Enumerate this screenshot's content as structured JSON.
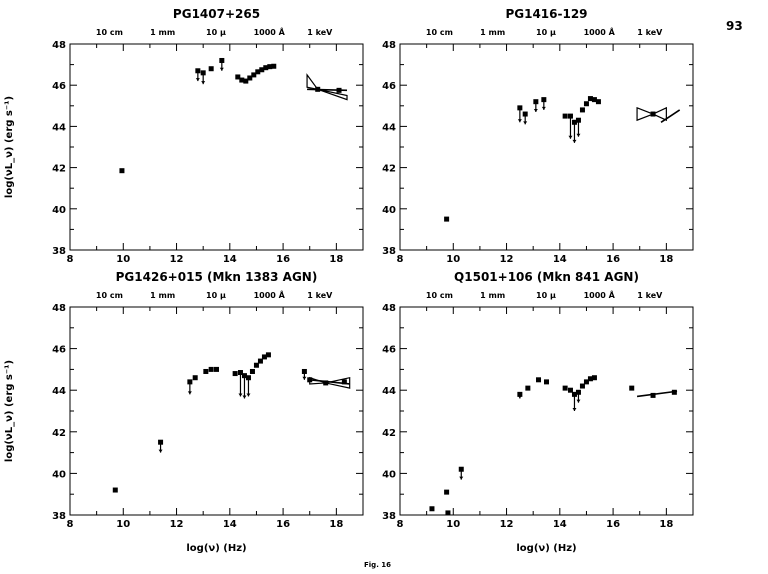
{
  "page_number": "93",
  "figure_caption": "Fig. 16",
  "top_axis_labels": [
    "10 cm",
    "1 mm",
    "10 μ",
    "1000 Å",
    "1 keV"
  ],
  "top_axis_positions": [
    9.48,
    11.48,
    13.48,
    15.48,
    17.38
  ],
  "ylabel": "log(νL_ν) (erg s⁻¹)",
  "xlabel": "log(ν) (Hz)",
  "chart_data": [
    {
      "type": "scatter",
      "title": "PG1407+265",
      "xlim": [
        8,
        19
      ],
      "ylim": [
        38,
        48
      ],
      "xticks": [
        8,
        10,
        12,
        14,
        16,
        18
      ],
      "yticks": [
        38,
        40,
        42,
        44,
        46,
        48
      ],
      "points": [
        {
          "x": 9.95,
          "y": 41.85
        },
        {
          "x": 12.8,
          "y": 46.7
        },
        {
          "x": 13.0,
          "y": 46.6
        },
        {
          "x": 13.3,
          "y": 46.8
        },
        {
          "x": 13.7,
          "y": 47.2
        },
        {
          "x": 14.3,
          "y": 46.4
        },
        {
          "x": 14.45,
          "y": 46.25
        },
        {
          "x": 14.6,
          "y": 46.2
        },
        {
          "x": 14.75,
          "y": 46.35
        },
        {
          "x": 14.9,
          "y": 46.5
        },
        {
          "x": 15.05,
          "y": 46.65
        },
        {
          "x": 15.2,
          "y": 46.75
        },
        {
          "x": 15.35,
          "y": 46.85
        },
        {
          "x": 15.5,
          "y": 46.9
        },
        {
          "x": 15.65,
          "y": 46.92
        },
        {
          "x": 17.3,
          "y": 45.8
        },
        {
          "x": 18.1,
          "y": 45.75
        }
      ],
      "upper_limits": [
        {
          "x": 12.8,
          "y": 46.7,
          "ylow": 46.2
        },
        {
          "x": 13.0,
          "y": 46.6,
          "ylow": 46.05
        },
        {
          "x": 13.7,
          "y": 47.2,
          "ylow": 46.7
        }
      ],
      "xray_bowtie": {
        "x1": 16.9,
        "x2": 18.4,
        "pivot_x": 17.3,
        "pivot_y": 45.8,
        "y_hi_start": 46.5,
        "y_lo_start": 45.9,
        "y_hi_end": 45.5,
        "y_lo_end": 45.3
      },
      "xray_line": {
        "x1": 16.9,
        "y1": 45.8,
        "x2": 18.4,
        "y2": 45.75
      }
    },
    {
      "type": "scatter",
      "title": "PG1416-129",
      "xlim": [
        8,
        19
      ],
      "ylim": [
        38,
        48
      ],
      "xticks": [
        8,
        10,
        12,
        14,
        16,
        18
      ],
      "yticks": [
        38,
        40,
        42,
        44,
        46,
        48
      ],
      "points": [
        {
          "x": 9.75,
          "y": 39.5
        },
        {
          "x": 12.5,
          "y": 44.9
        },
        {
          "x": 12.7,
          "y": 44.6
        },
        {
          "x": 13.1,
          "y": 45.2
        },
        {
          "x": 13.4,
          "y": 45.3
        },
        {
          "x": 14.2,
          "y": 44.5
        },
        {
          "x": 14.4,
          "y": 44.5
        },
        {
          "x": 14.55,
          "y": 44.2
        },
        {
          "x": 14.7,
          "y": 44.3
        },
        {
          "x": 14.85,
          "y": 44.8
        },
        {
          "x": 15.0,
          "y": 45.1
        },
        {
          "x": 15.15,
          "y": 45.35
        },
        {
          "x": 15.3,
          "y": 45.3
        },
        {
          "x": 15.45,
          "y": 45.2
        },
        {
          "x": 17.5,
          "y": 44.6
        }
      ],
      "upper_limits": [
        {
          "x": 12.5,
          "y": 44.9,
          "ylow": 44.2
        },
        {
          "x": 12.7,
          "y": 44.6,
          "ylow": 44.1
        },
        {
          "x": 13.1,
          "y": 45.2,
          "ylow": 44.7
        },
        {
          "x": 13.4,
          "y": 45.3,
          "ylow": 44.8
        },
        {
          "x": 14.4,
          "y": 44.5,
          "ylow": 43.4
        },
        {
          "x": 14.55,
          "y": 44.2,
          "ylow": 43.2
        },
        {
          "x": 14.7,
          "y": 44.3,
          "ylow": 43.5
        }
      ],
      "xray_bowtie": {
        "x1": 16.9,
        "x2": 18.0,
        "pivot_x": 17.5,
        "pivot_y": 44.6,
        "y_hi_start": 44.9,
        "y_lo_start": 44.3,
        "y_hi_end": 44.3,
        "y_lo_end": 44.9
      },
      "xray_line": {
        "x1": 17.8,
        "y1": 44.2,
        "x2": 18.5,
        "y2": 44.8
      }
    },
    {
      "type": "scatter",
      "title": "PG1426+015 (Mkn 1383 AGN)",
      "xlim": [
        8,
        19
      ],
      "ylim": [
        38,
        48
      ],
      "xticks": [
        8,
        10,
        12,
        14,
        16,
        18
      ],
      "yticks": [
        38,
        40,
        42,
        44,
        46,
        48
      ],
      "points": [
        {
          "x": 9.7,
          "y": 39.2
        },
        {
          "x": 11.4,
          "y": 41.5
        },
        {
          "x": 12.5,
          "y": 44.4
        },
        {
          "x": 12.7,
          "y": 44.6
        },
        {
          "x": 13.1,
          "y": 44.9
        },
        {
          "x": 13.3,
          "y": 45.0
        },
        {
          "x": 13.5,
          "y": 45.0
        },
        {
          "x": 14.2,
          "y": 44.8
        },
        {
          "x": 14.4,
          "y": 44.85
        },
        {
          "x": 14.55,
          "y": 44.7
        },
        {
          "x": 14.7,
          "y": 44.6
        },
        {
          "x": 14.85,
          "y": 44.9
        },
        {
          "x": 15.0,
          "y": 45.2
        },
        {
          "x": 15.15,
          "y": 45.4
        },
        {
          "x": 15.3,
          "y": 45.6
        },
        {
          "x": 15.45,
          "y": 45.7
        },
        {
          "x": 16.8,
          "y": 44.9
        },
        {
          "x": 17.0,
          "y": 44.5
        },
        {
          "x": 17.6,
          "y": 44.35
        },
        {
          "x": 18.3,
          "y": 44.4
        }
      ],
      "upper_limits": [
        {
          "x": 11.4,
          "y": 41.5,
          "ylow": 41.0
        },
        {
          "x": 12.5,
          "y": 44.4,
          "ylow": 43.8
        },
        {
          "x": 14.4,
          "y": 44.85,
          "ylow": 43.7
        },
        {
          "x": 14.55,
          "y": 44.7,
          "ylow": 43.6
        },
        {
          "x": 14.7,
          "y": 44.6,
          "ylow": 43.7
        },
        {
          "x": 16.8,
          "y": 44.9,
          "ylow": 44.5
        }
      ],
      "xray_bowtie": {
        "x1": 17.0,
        "x2": 18.5,
        "pivot_x": 17.6,
        "pivot_y": 44.35,
        "y_hi_start": 44.6,
        "y_lo_start": 44.3,
        "y_hi_end": 44.6,
        "y_lo_end": 44.1
      },
      "xray_line": {
        "x1": 17.0,
        "y1": 44.5,
        "x2": 18.5,
        "y2": 44.3
      }
    },
    {
      "type": "scatter",
      "title": "Q1501+106 (Mkn 841 AGN)",
      "xlim": [
        8,
        19
      ],
      "ylim": [
        38,
        48
      ],
      "xticks": [
        8,
        10,
        12,
        14,
        16,
        18
      ],
      "yticks": [
        38,
        40,
        42,
        44,
        46,
        48
      ],
      "points": [
        {
          "x": 9.2,
          "y": 38.3
        },
        {
          "x": 9.75,
          "y": 39.1
        },
        {
          "x": 9.8,
          "y": 38.1
        },
        {
          "x": 10.3,
          "y": 40.2
        },
        {
          "x": 12.5,
          "y": 43.8
        },
        {
          "x": 12.8,
          "y": 44.1
        },
        {
          "x": 13.2,
          "y": 44.5
        },
        {
          "x": 13.5,
          "y": 44.4
        },
        {
          "x": 14.2,
          "y": 44.1
        },
        {
          "x": 14.4,
          "y": 44.0
        },
        {
          "x": 14.55,
          "y": 43.8
        },
        {
          "x": 14.7,
          "y": 43.9
        },
        {
          "x": 14.85,
          "y": 44.2
        },
        {
          "x": 15.0,
          "y": 44.4
        },
        {
          "x": 15.15,
          "y": 44.55
        },
        {
          "x": 15.3,
          "y": 44.6
        },
        {
          "x": 16.7,
          "y": 44.1
        },
        {
          "x": 17.5,
          "y": 43.75
        },
        {
          "x": 18.3,
          "y": 43.9
        }
      ],
      "upper_limits": [
        {
          "x": 10.3,
          "y": 40.2,
          "ylow": 39.7
        },
        {
          "x": 12.5,
          "y": 43.8,
          "ylow": 43.6
        },
        {
          "x": 14.55,
          "y": 43.8,
          "ylow": 43.0
        },
        {
          "x": 14.7,
          "y": 43.9,
          "ylow": 43.4
        }
      ],
      "xray_bowtie": null,
      "xray_line": {
        "x1": 16.9,
        "y1": 43.7,
        "x2": 18.4,
        "y2": 43.95
      }
    }
  ]
}
